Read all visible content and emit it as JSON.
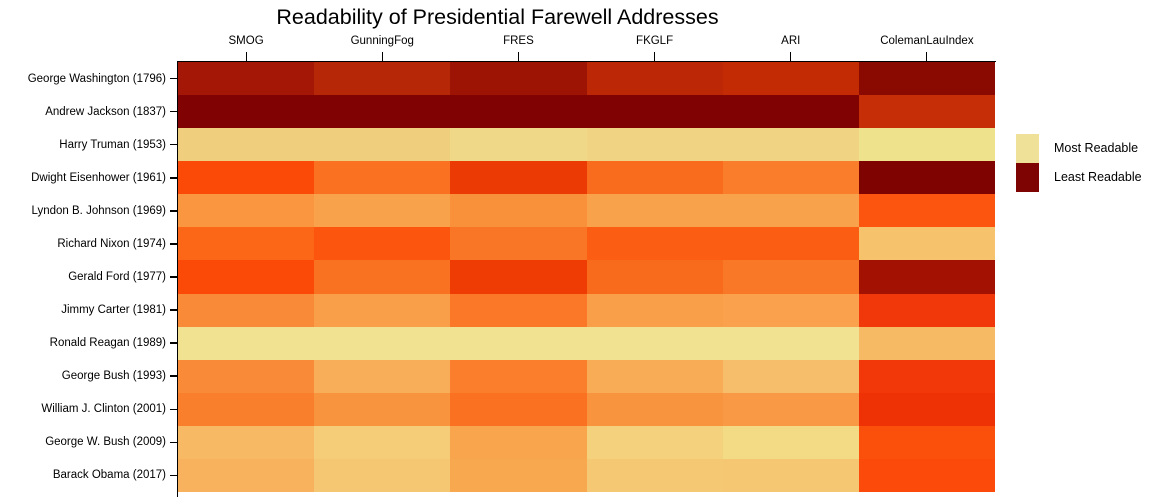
{
  "title": "Readability of Presidential Farewell Addresses",
  "chart_data": {
    "type": "heatmap",
    "title": "Readability of Presidential Farewell Addresses",
    "columns": [
      "SMOG",
      "GunningFog",
      "FRES",
      "FKGLF",
      "ARI",
      "ColemanLauIndex"
    ],
    "rows": [
      "George Washington (1796)",
      "Andrew Jackson (1837)",
      "Harry Truman (1953)",
      "Dwight Eisenhower (1961)",
      "Lyndon B. Johnson (1969)",
      "Richard Nixon (1974)",
      "Gerald Ford (1977)",
      "Jimmy Carter (1981)",
      "Ronald Reagan (1989)",
      "George Bush (1993)",
      "William J. Clinton (2001)",
      "George W. Bush (2009)",
      "Barack Obama (2017)"
    ],
    "cell_colors": [
      [
        "#A41706",
        "#B52706",
        "#9D1404",
        "#BC2705",
        "#C32B04",
        "#8A0901"
      ],
      [
        "#800202",
        "#800202",
        "#800202",
        "#800202",
        "#800202",
        "#C62E08"
      ],
      [
        "#EFCE7D",
        "#EFCE7D",
        "#F0D889",
        "#F0D383",
        "#F0D383",
        "#EFE28C"
      ],
      [
        "#FB4A07",
        "#FA7121",
        "#EC3A04",
        "#FA6C1D",
        "#F97D2B",
        "#7E0301"
      ],
      [
        "#F9963F",
        "#F9A24C",
        "#F9913A",
        "#F9A24C",
        "#F9A24C",
        "#FB5510"
      ],
      [
        "#FB6716",
        "#FB550E",
        "#FA7627",
        "#FB5D12",
        "#FB5D12",
        "#F6C26C"
      ],
      [
        "#FB4A07",
        "#F97222",
        "#EE3C04",
        "#F96B1C",
        "#F97828",
        "#A31103"
      ],
      [
        "#F98A37",
        "#F99E49",
        "#FA7828",
        "#F99E49",
        "#F9A14D",
        "#F1380B"
      ],
      [
        "#F0E290",
        "#F0E290",
        "#F0E290",
        "#F0E290",
        "#F0E290",
        "#F7BA64"
      ],
      [
        "#F98A37",
        "#F8AE59",
        "#FA7E2C",
        "#F8AC56",
        "#F6BE6A",
        "#F23808"
      ],
      [
        "#F97F2C",
        "#F9943E",
        "#FA7121",
        "#F9943E",
        "#F99945",
        "#EF3106"
      ],
      [
        "#F7B963",
        "#F5CC78",
        "#F8A54E",
        "#F4D17D",
        "#F3DA85",
        "#FB500C"
      ],
      [
        "#F8B15D",
        "#F5C773",
        "#F8A950",
        "#F5C974",
        "#F5C773",
        "#FB4A09"
      ]
    ],
    "legend": [
      {
        "label": "Most Readable",
        "color": "#EFE298"
      },
      {
        "label": "Least Readable",
        "color": "#7D0402"
      }
    ],
    "legend_position": "right",
    "grid": false,
    "axis_color": "#000000"
  }
}
